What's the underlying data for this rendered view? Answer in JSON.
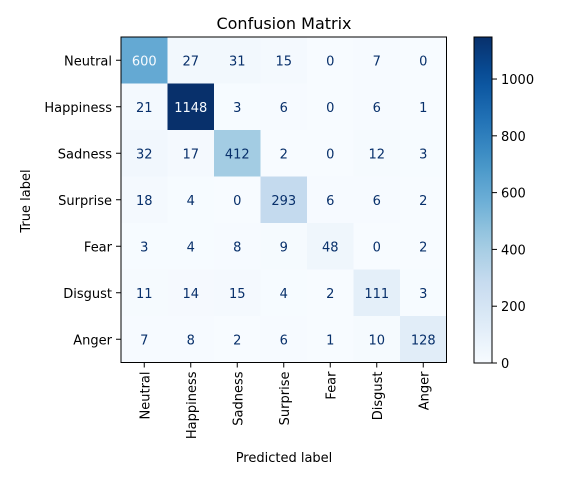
{
  "chart_data": {
    "type": "heatmap",
    "title": "Confusion Matrix",
    "xlabel": "Predicted label",
    "ylabel": "True label",
    "categories": [
      "Neutral",
      "Happiness",
      "Sadness",
      "Surprise",
      "Fear",
      "Disgust",
      "Anger"
    ],
    "matrix": [
      [
        600,
        27,
        31,
        15,
        0,
        7,
        0
      ],
      [
        21,
        1148,
        3,
        6,
        0,
        6,
        1
      ],
      [
        32,
        17,
        412,
        2,
        0,
        12,
        3
      ],
      [
        18,
        4,
        0,
        293,
        6,
        6,
        2
      ],
      [
        3,
        4,
        8,
        9,
        48,
        0,
        2
      ],
      [
        11,
        14,
        15,
        4,
        2,
        111,
        3
      ],
      [
        7,
        8,
        2,
        6,
        1,
        10,
        128
      ]
    ],
    "colorbar": {
      "colormap": "Blues",
      "min": 0,
      "max": 1148,
      "ticks": [
        0,
        200,
        400,
        600,
        800,
        1000
      ]
    },
    "colors": {
      "low": "#f7fbff",
      "high": "#08306b",
      "text_dark": "#08306b",
      "text_light": "#f7fbff"
    }
  }
}
